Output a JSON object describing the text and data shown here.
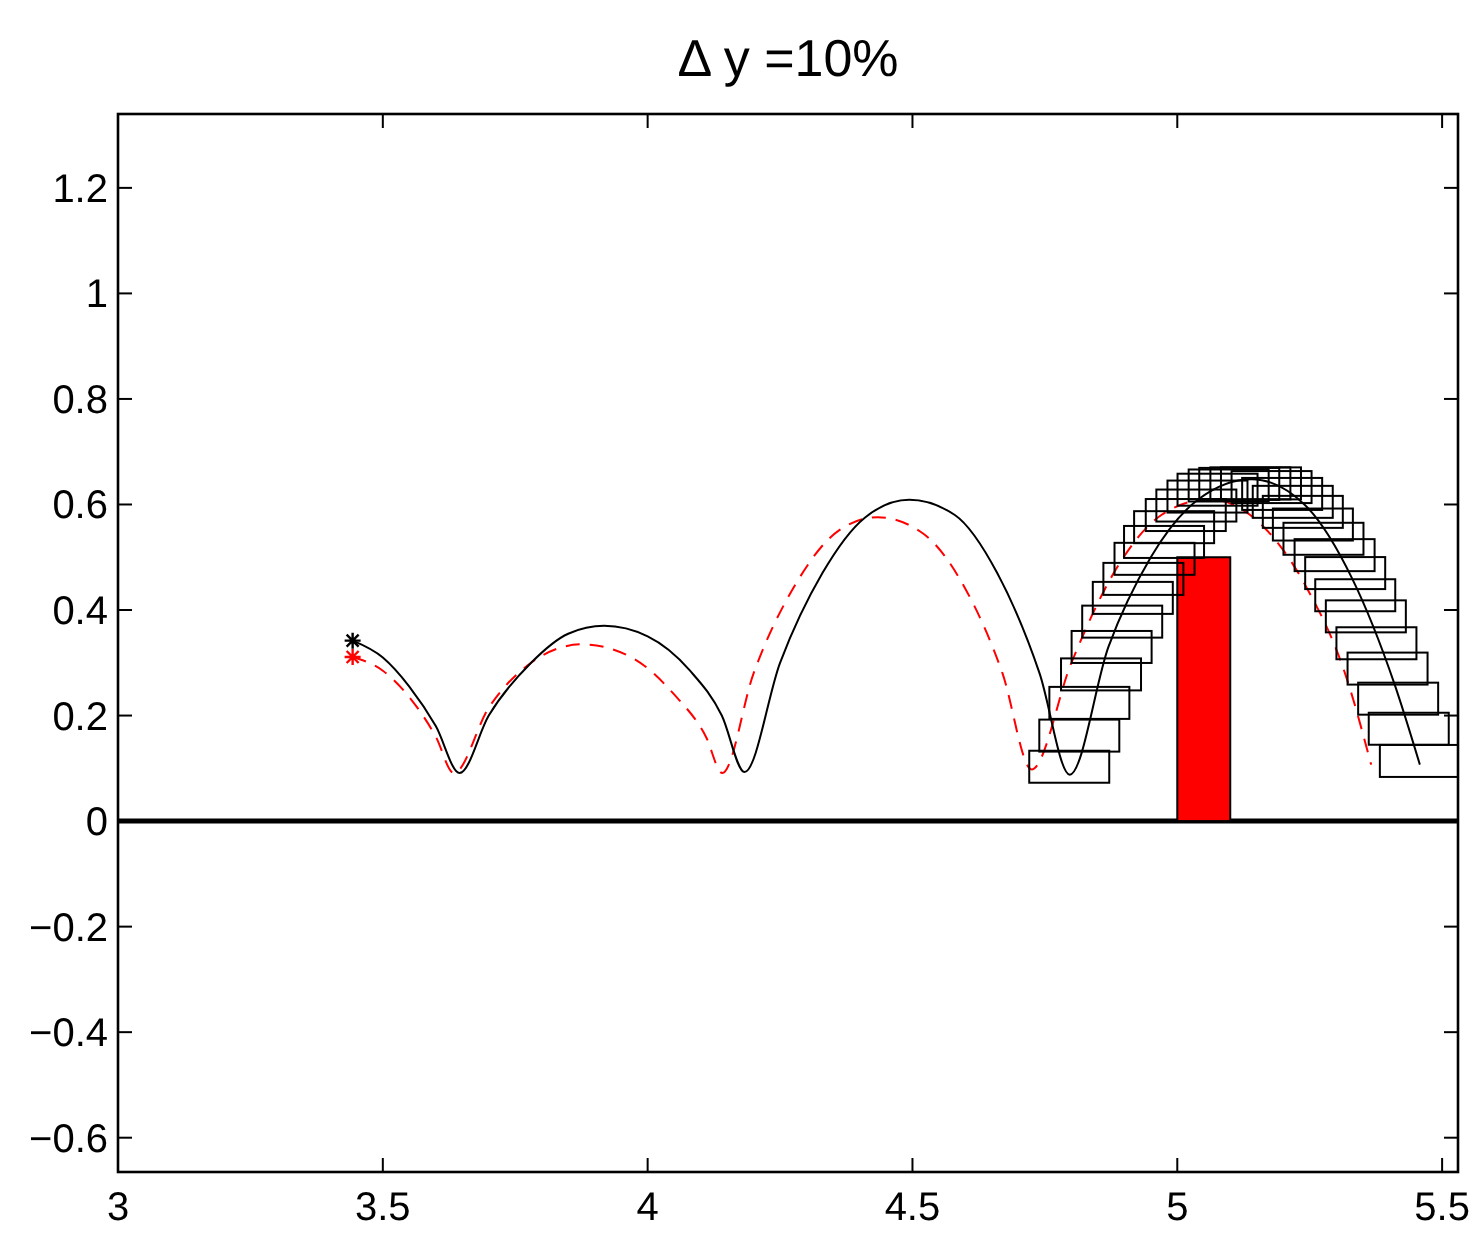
{
  "chart_data": {
    "type": "line",
    "title": "Δ y =10%",
    "xlim": [
      3,
      5.53
    ],
    "ylim": [
      -0.665,
      1.34
    ],
    "xticks": [
      3,
      3.5,
      4,
      4.5,
      5,
      5.5
    ],
    "yticks": [
      -0.6,
      -0.4,
      -0.2,
      0,
      0.2,
      0.4,
      0.6,
      0.8,
      1,
      1.2
    ],
    "grid": false,
    "ref_lines": [
      {
        "axis": "y",
        "value": 0,
        "color": "#000000"
      }
    ],
    "series": [
      {
        "type": "bar",
        "color": "#ff0000",
        "x": [
          5.05
        ],
        "values": [
          0.5
        ]
      },
      {
        "type": "line",
        "color": "#ff0000",
        "line_style": "dashed",
        "marker": "none",
        "x": [
          3.443,
          3.5,
          3.55,
          3.6,
          3.634,
          3.7,
          3.78,
          3.876,
          3.97,
          4.05,
          4.11,
          4.141,
          4.2,
          4.28,
          4.36,
          4.434,
          4.52,
          4.6,
          4.67,
          4.725,
          4.8,
          4.88,
          4.97,
          5.06,
          5.15,
          5.24,
          5.32,
          5.366
        ],
        "values": [
          0.311,
          0.285,
          0.235,
          0.16,
          0.091,
          0.215,
          0.3,
          0.335,
          0.31,
          0.24,
          0.16,
          0.091,
          0.28,
          0.45,
          0.55,
          0.576,
          0.545,
          0.44,
          0.28,
          0.098,
          0.3,
          0.47,
          0.58,
          0.61,
          0.57,
          0.45,
          0.27,
          0.107
        ]
      },
      {
        "color": "#000000",
        "line_style": "solid",
        "marker": "none",
        "x": [
          3.443,
          3.5,
          3.55,
          3.6,
          3.645,
          3.7,
          3.78,
          3.85,
          3.918,
          4.0,
          4.08,
          4.14,
          4.183,
          4.25,
          4.33,
          4.41,
          4.494,
          4.58,
          4.66,
          4.74,
          4.797,
          4.87,
          4.95,
          5.04,
          5.14,
          5.24,
          5.33,
          5.41,
          5.458
        ],
        "values": [
          0.342,
          0.31,
          0.255,
          0.18,
          0.091,
          0.2,
          0.3,
          0.355,
          0.37,
          0.35,
          0.285,
          0.2,
          0.093,
          0.3,
          0.47,
          0.575,
          0.609,
          0.58,
          0.47,
          0.28,
          0.088,
          0.33,
          0.5,
          0.61,
          0.648,
          0.6,
          0.46,
          0.26,
          0.107
        ]
      },
      {
        "type": "scatter",
        "color": "#000000",
        "marker": "square",
        "x": [
          4.796,
          4.815,
          4.834,
          4.856,
          4.876,
          4.896,
          4.916,
          4.936,
          4.957,
          4.975,
          4.994,
          5.016,
          5.036,
          5.057,
          5.076,
          5.097,
          5.117,
          5.138,
          5.158,
          5.178,
          5.198,
          5.218,
          5.237,
          5.256,
          5.276,
          5.297,
          5.317,
          5.336,
          5.356,
          5.376,
          5.397,
          5.417,
          5.437,
          5.458
        ],
        "values": [
          0.103,
          0.162,
          0.224,
          0.278,
          0.33,
          0.378,
          0.423,
          0.459,
          0.497,
          0.529,
          0.557,
          0.58,
          0.598,
          0.615,
          0.628,
          0.636,
          0.639,
          0.64,
          0.64,
          0.633,
          0.62,
          0.605,
          0.586,
          0.562,
          0.535,
          0.504,
          0.47,
          0.428,
          0.388,
          0.337,
          0.289,
          0.232,
          0.175,
          0.114
        ]
      },
      {
        "type": "scatter",
        "color": "#ff0000",
        "marker": "cross",
        "x": [
          3.443
        ],
        "values": [
          0.311
        ]
      },
      {
        "type": "scatter",
        "color": "#000000",
        "marker": "cross",
        "x": [
          3.443
        ],
        "values": [
          0.342
        ]
      }
    ]
  }
}
